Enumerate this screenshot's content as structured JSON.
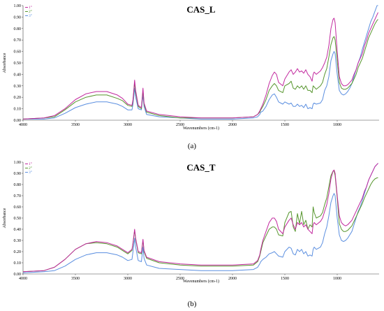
{
  "chart_data": [
    {
      "type": "line",
      "title": "CAS_L",
      "caption": "(a)",
      "xlabel": "Wavenumbers (cm-1)",
      "ylabel": "Absorbance",
      "xlim": [
        4000,
        600
      ],
      "ylim": [
        0,
        1.0
      ],
      "x_reversed": true,
      "grid": false,
      "legend_position": "top-left",
      "x_ticks": [
        4000,
        3500,
        3000,
        2500,
        2000,
        1500,
        1000
      ],
      "y_ticks": [
        "1.00",
        "0.90",
        "0.80",
        "0.70",
        "0.60",
        "0.50",
        "0.40",
        "0.30",
        "0.20",
        "0.10",
        "0.00"
      ],
      "series": [
        {
          "name": "1°",
          "color": "#c2289e",
          "x": [
            4000,
            3800,
            3700,
            3600,
            3500,
            3400,
            3300,
            3200,
            3100,
            3050,
            3000,
            2960,
            2950,
            2935,
            2925,
            2900,
            2870,
            2855,
            2845,
            2820,
            2700,
            2500,
            2300,
            2000,
            1800,
            1760,
            1740,
            1730,
            1710,
            1680,
            1650,
            1620,
            1600,
            1580,
            1560,
            1520,
            1500,
            1460,
            1440,
            1420,
            1400,
            1380,
            1360,
            1340,
            1320,
            1300,
            1280,
            1260,
            1240,
            1230,
            1220,
            1200,
            1160,
            1140,
            1120,
            1100,
            1080,
            1060,
            1040,
            1030,
            1020,
            1000,
            980,
            960,
            940,
            920,
            900,
            880,
            860,
            840,
            820,
            800,
            780,
            760,
            740,
            720,
            700,
            680,
            660,
            640,
            620,
            610
          ],
          "y": [
            0.01,
            0.02,
            0.04,
            0.1,
            0.18,
            0.23,
            0.25,
            0.25,
            0.22,
            0.19,
            0.14,
            0.13,
            0.18,
            0.35,
            0.26,
            0.13,
            0.11,
            0.28,
            0.15,
            0.08,
            0.05,
            0.03,
            0.02,
            0.02,
            0.03,
            0.05,
            0.08,
            0.1,
            0.14,
            0.22,
            0.32,
            0.39,
            0.42,
            0.4,
            0.33,
            0.3,
            0.36,
            0.42,
            0.44,
            0.4,
            0.42,
            0.45,
            0.42,
            0.43,
            0.41,
            0.44,
            0.4,
            0.38,
            0.34,
            0.4,
            0.42,
            0.4,
            0.43,
            0.46,
            0.5,
            0.55,
            0.65,
            0.8,
            0.88,
            0.89,
            0.85,
            0.6,
            0.38,
            0.32,
            0.3,
            0.3,
            0.31,
            0.33,
            0.35,
            0.4,
            0.44,
            0.5,
            0.54,
            0.58,
            0.65,
            0.7,
            0.76,
            0.8,
            0.84,
            0.88,
            0.92,
            0.94
          ]
        },
        {
          "name": "2°",
          "color": "#57962e",
          "x": [
            4000,
            3800,
            3700,
            3600,
            3500,
            3400,
            3300,
            3200,
            3100,
            3050,
            3000,
            2960,
            2950,
            2935,
            2925,
            2900,
            2870,
            2855,
            2845,
            2820,
            2700,
            2500,
            2300,
            2000,
            1800,
            1760,
            1740,
            1730,
            1710,
            1680,
            1650,
            1620,
            1600,
            1580,
            1560,
            1520,
            1500,
            1460,
            1440,
            1420,
            1400,
            1380,
            1360,
            1340,
            1320,
            1300,
            1280,
            1260,
            1240,
            1230,
            1220,
            1200,
            1160,
            1140,
            1120,
            1100,
            1080,
            1060,
            1040,
            1030,
            1020,
            1000,
            980,
            960,
            940,
            920,
            900,
            880,
            860,
            840,
            820,
            800,
            780,
            760,
            740,
            720,
            700,
            680,
            660,
            640,
            620,
            610
          ],
          "y": [
            0.01,
            0.02,
            0.03,
            0.09,
            0.16,
            0.2,
            0.22,
            0.22,
            0.19,
            0.17,
            0.13,
            0.12,
            0.17,
            0.33,
            0.24,
            0.12,
            0.1,
            0.26,
            0.14,
            0.07,
            0.04,
            0.02,
            0.02,
            0.02,
            0.03,
            0.05,
            0.07,
            0.09,
            0.12,
            0.18,
            0.26,
            0.3,
            0.32,
            0.3,
            0.26,
            0.24,
            0.3,
            0.32,
            0.34,
            0.28,
            0.27,
            0.3,
            0.28,
            0.3,
            0.27,
            0.3,
            0.26,
            0.26,
            0.24,
            0.3,
            0.29,
            0.27,
            0.3,
            0.33,
            0.4,
            0.45,
            0.55,
            0.66,
            0.72,
            0.73,
            0.7,
            0.52,
            0.33,
            0.28,
            0.27,
            0.27,
            0.28,
            0.3,
            0.32,
            0.36,
            0.4,
            0.46,
            0.5,
            0.54,
            0.6,
            0.66,
            0.72,
            0.76,
            0.8,
            0.84,
            0.87,
            0.88
          ]
        },
        {
          "name": "3°",
          "color": "#5b8fe0",
          "x": [
            4000,
            3800,
            3700,
            3600,
            3500,
            3400,
            3300,
            3200,
            3100,
            3050,
            3000,
            2960,
            2950,
            2935,
            2925,
            2900,
            2870,
            2855,
            2845,
            2820,
            2700,
            2500,
            2300,
            2000,
            1800,
            1760,
            1740,
            1730,
            1710,
            1680,
            1650,
            1620,
            1600,
            1580,
            1560,
            1520,
            1500,
            1460,
            1440,
            1420,
            1400,
            1380,
            1360,
            1340,
            1320,
            1300,
            1280,
            1260,
            1240,
            1230,
            1220,
            1200,
            1160,
            1140,
            1120,
            1100,
            1080,
            1060,
            1040,
            1030,
            1020,
            1000,
            980,
            960,
            940,
            920,
            900,
            880,
            860,
            840,
            820,
            800,
            780,
            760,
            740,
            720,
            700,
            680,
            660,
            640,
            620,
            610
          ],
          "y": [
            0.01,
            0.01,
            0.02,
            0.06,
            0.11,
            0.14,
            0.16,
            0.16,
            0.14,
            0.12,
            0.09,
            0.09,
            0.14,
            0.28,
            0.2,
            0.1,
            0.09,
            0.22,
            0.12,
            0.05,
            0.03,
            0.02,
            0.01,
            0.01,
            0.02,
            0.03,
            0.05,
            0.07,
            0.08,
            0.12,
            0.18,
            0.22,
            0.23,
            0.2,
            0.16,
            0.14,
            0.16,
            0.14,
            0.15,
            0.12,
            0.12,
            0.14,
            0.12,
            0.13,
            0.11,
            0.14,
            0.1,
            0.11,
            0.1,
            0.14,
            0.15,
            0.14,
            0.15,
            0.18,
            0.26,
            0.3,
            0.38,
            0.52,
            0.58,
            0.6,
            0.58,
            0.4,
            0.26,
            0.23,
            0.22,
            0.23,
            0.25,
            0.28,
            0.32,
            0.38,
            0.44,
            0.5,
            0.55,
            0.62,
            0.68,
            0.74,
            0.8,
            0.86,
            0.9,
            0.95,
            1.0,
            1.0
          ]
        }
      ]
    },
    {
      "type": "line",
      "title": "CAS_T",
      "caption": "(b)",
      "xlabel": "Wavenumbers (cm-1)",
      "ylabel": "Absorbance",
      "xlim": [
        4000,
        600
      ],
      "ylim": [
        0,
        1.0
      ],
      "x_reversed": true,
      "grid": false,
      "legend_position": "top-left",
      "x_ticks": [
        4000,
        3500,
        3000,
        2500,
        2000,
        1500,
        1000
      ],
      "y_ticks": [
        "1.00",
        "0.90",
        "0.80",
        "0.70",
        "0.60",
        "0.50",
        "0.40",
        "0.30",
        "0.20",
        "0.10",
        "0.00"
      ],
      "series": [
        {
          "name": "1°",
          "color": "#c2289e",
          "x": [
            4000,
            3800,
            3700,
            3600,
            3500,
            3400,
            3300,
            3200,
            3100,
            3050,
            3000,
            2960,
            2950,
            2935,
            2925,
            2900,
            2870,
            2855,
            2845,
            2820,
            2700,
            2500,
            2300,
            2000,
            1800,
            1760,
            1740,
            1730,
            1710,
            1680,
            1650,
            1620,
            1600,
            1580,
            1560,
            1520,
            1500,
            1460,
            1440,
            1420,
            1400,
            1380,
            1360,
            1340,
            1320,
            1300,
            1280,
            1260,
            1240,
            1230,
            1220,
            1200,
            1160,
            1140,
            1120,
            1100,
            1080,
            1060,
            1040,
            1030,
            1020,
            1000,
            980,
            960,
            940,
            920,
            900,
            880,
            860,
            840,
            820,
            800,
            780,
            760,
            740,
            720,
            700,
            680,
            660,
            640,
            620,
            610
          ],
          "y": [
            0.02,
            0.03,
            0.06,
            0.13,
            0.22,
            0.27,
            0.29,
            0.28,
            0.25,
            0.22,
            0.19,
            0.22,
            0.28,
            0.4,
            0.32,
            0.2,
            0.19,
            0.31,
            0.21,
            0.15,
            0.11,
            0.09,
            0.08,
            0.08,
            0.09,
            0.12,
            0.17,
            0.22,
            0.3,
            0.38,
            0.46,
            0.5,
            0.5,
            0.47,
            0.4,
            0.36,
            0.42,
            0.48,
            0.5,
            0.44,
            0.4,
            0.46,
            0.44,
            0.46,
            0.42,
            0.44,
            0.4,
            0.38,
            0.36,
            0.44,
            0.46,
            0.44,
            0.47,
            0.5,
            0.56,
            0.62,
            0.72,
            0.85,
            0.92,
            0.93,
            0.9,
            0.7,
            0.52,
            0.46,
            0.44,
            0.43,
            0.44,
            0.46,
            0.48,
            0.52,
            0.56,
            0.6,
            0.64,
            0.68,
            0.74,
            0.78,
            0.84,
            0.88,
            0.92,
            0.96,
            0.98,
            0.99
          ]
        },
        {
          "name": "2°",
          "color": "#57962e",
          "x": [
            4000,
            3800,
            3700,
            3600,
            3500,
            3400,
            3300,
            3200,
            3100,
            3050,
            3000,
            2960,
            2950,
            2935,
            2925,
            2900,
            2870,
            2855,
            2845,
            2820,
            2700,
            2500,
            2300,
            2000,
            1800,
            1760,
            1740,
            1730,
            1710,
            1680,
            1650,
            1620,
            1600,
            1580,
            1560,
            1520,
            1500,
            1460,
            1440,
            1420,
            1400,
            1380,
            1360,
            1340,
            1320,
            1300,
            1280,
            1260,
            1240,
            1230,
            1220,
            1200,
            1160,
            1140,
            1120,
            1100,
            1080,
            1060,
            1040,
            1030,
            1020,
            1000,
            980,
            960,
            940,
            920,
            900,
            880,
            860,
            840,
            820,
            800,
            780,
            760,
            740,
            720,
            700,
            680,
            660,
            640,
            620,
            610
          ],
          "y": [
            0.02,
            0.03,
            0.06,
            0.13,
            0.22,
            0.27,
            0.28,
            0.27,
            0.24,
            0.21,
            0.18,
            0.21,
            0.27,
            0.39,
            0.31,
            0.19,
            0.18,
            0.3,
            0.2,
            0.14,
            0.1,
            0.08,
            0.07,
            0.07,
            0.08,
            0.11,
            0.16,
            0.2,
            0.28,
            0.34,
            0.4,
            0.42,
            0.42,
            0.4,
            0.35,
            0.34,
            0.46,
            0.55,
            0.56,
            0.42,
            0.38,
            0.54,
            0.45,
            0.56,
            0.44,
            0.48,
            0.4,
            0.44,
            0.42,
            0.6,
            0.55,
            0.5,
            0.52,
            0.55,
            0.62,
            0.68,
            0.78,
            0.88,
            0.92,
            0.92,
            0.88,
            0.68,
            0.45,
            0.4,
            0.38,
            0.38,
            0.39,
            0.41,
            0.43,
            0.47,
            0.51,
            0.55,
            0.59,
            0.63,
            0.68,
            0.72,
            0.76,
            0.8,
            0.83,
            0.85,
            0.86,
            0.86
          ]
        },
        {
          "name": "3°",
          "color": "#5b8fe0",
          "x": [
            4000,
            3800,
            3700,
            3600,
            3500,
            3400,
            3300,
            3200,
            3100,
            3050,
            3000,
            2960,
            2950,
            2935,
            2925,
            2900,
            2870,
            2855,
            2845,
            2820,
            2700,
            2500,
            2300,
            2000,
            1800,
            1760,
            1740,
            1730,
            1710,
            1680,
            1650,
            1620,
            1600,
            1580,
            1560,
            1520,
            1500,
            1460,
            1440,
            1420,
            1400,
            1380,
            1360,
            1340,
            1320,
            1300,
            1280,
            1260,
            1240,
            1230,
            1220,
            1200,
            1160,
            1140,
            1120,
            1100,
            1080,
            1060,
            1040,
            1030,
            1020,
            1000,
            980,
            960,
            940,
            920,
            900,
            880,
            860,
            840,
            820,
            800,
            780,
            760,
            740,
            720,
            700,
            680,
            660,
            640,
            620,
            610
          ],
          "y": [
            0.01,
            0.02,
            0.03,
            0.07,
            0.13,
            0.17,
            0.19,
            0.19,
            0.17,
            0.15,
            0.12,
            0.13,
            0.2,
            0.32,
            0.24,
            0.12,
            0.11,
            0.24,
            0.14,
            0.08,
            0.05,
            0.04,
            0.03,
            0.03,
            0.04,
            0.06,
            0.09,
            0.11,
            0.13,
            0.15,
            0.18,
            0.19,
            0.2,
            0.18,
            0.16,
            0.15,
            0.2,
            0.24,
            0.23,
            0.18,
            0.17,
            0.22,
            0.2,
            0.22,
            0.18,
            0.2,
            0.16,
            0.17,
            0.16,
            0.22,
            0.24,
            0.22,
            0.24,
            0.28,
            0.36,
            0.42,
            0.52,
            0.64,
            0.7,
            0.72,
            0.7,
            0.5,
            0.35,
            0.3,
            0.29,
            0.3,
            0.32,
            0.35,
            0.38,
            0.44,
            0.5,
            0.56,
            0.6,
            0.66,
            0.72,
            0.78,
            0.84,
            0.88,
            0.92,
            0.96,
            0.98,
            0.99
          ]
        }
      ]
    }
  ]
}
